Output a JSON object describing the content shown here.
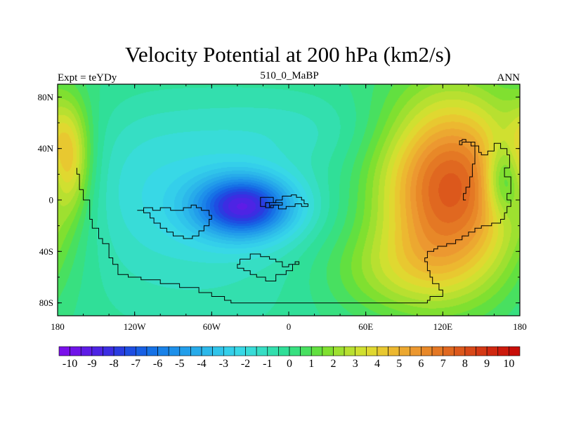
{
  "chart_data": {
    "type": "heatmap",
    "title": "Velocity Potential at 200 hPa (km2/s)",
    "subtitle_left": "Expt = teYDy",
    "subtitle_center": "510_0_MaBP",
    "subtitle_right": "ANN",
    "x_ticks": [
      {
        "value": -180,
        "label": "180"
      },
      {
        "value": -120,
        "label": "120W"
      },
      {
        "value": -60,
        "label": "60W"
      },
      {
        "value": 0,
        "label": "0"
      },
      {
        "value": 60,
        "label": "60E"
      },
      {
        "value": 120,
        "label": "120E"
      },
      {
        "value": 180,
        "label": "180"
      }
    ],
    "y_ticks": [
      {
        "value": 80,
        "label": "80N"
      },
      {
        "value": 40,
        "label": "40N"
      },
      {
        "value": 0,
        "label": "0"
      },
      {
        "value": -40,
        "label": "40S"
      },
      {
        "value": -80,
        "label": "80S"
      }
    ],
    "xlim": [
      -180,
      180
    ],
    "ylim": [
      -90,
      90
    ],
    "colorbar": {
      "min": -10.5,
      "max": 10.5,
      "step": 0.5,
      "labels": [
        "-10",
        "-9",
        "-8",
        "-7",
        "-6",
        "-5",
        "-4",
        "-3",
        "-2",
        "-1",
        "0",
        "1",
        "2",
        "3",
        "4",
        "5",
        "6",
        "7",
        "8",
        "9",
        "10"
      ],
      "colors": [
        "#7a10ea",
        "#6f14e8",
        "#5e1ce6",
        "#4d24e4",
        "#3c2de2",
        "#2a3ce0",
        "#1e4ee2",
        "#1860e4",
        "#1672e6",
        "#1a82e8",
        "#1e90ea",
        "#229eea",
        "#27abea",
        "#2cb8ea",
        "#30c4ea",
        "#34cfea",
        "#38d8e6",
        "#38dcd8",
        "#36dec4",
        "#33dfae",
        "#30df98",
        "#38e080",
        "#48e060",
        "#62e040",
        "#80e030",
        "#9ee030",
        "#b8e030",
        "#d0e030",
        "#e0d830",
        "#e8c830",
        "#ecb830",
        "#eca830",
        "#ec9830",
        "#e88828",
        "#e47824",
        "#e06820",
        "#dc581c",
        "#d84818",
        "#d43814",
        "#d02810",
        "#cc1a0c",
        "#c80e08"
      ]
    },
    "blobs": [
      {
        "lon": -35,
        "lat": -5,
        "amp": -7.6,
        "slon": 27,
        "slat": 17
      },
      {
        "lon": -70,
        "lat": -22,
        "amp": -1.4,
        "slon": 85,
        "slat": 55
      },
      {
        "lon": -120,
        "lat": 20,
        "amp": -1.0,
        "slon": 55,
        "slat": 38
      },
      {
        "lon": 0,
        "lat": 55,
        "amp": -0.9,
        "slon": 65,
        "slat": 22
      },
      {
        "lon": 128,
        "lat": 10,
        "amp": 8.0,
        "slon": 40,
        "slat": 50
      },
      {
        "lon": 168,
        "lat": 15,
        "amp": -3.2,
        "slon": 11,
        "slat": 20
      },
      {
        "lon": -172,
        "lat": 35,
        "amp": 3.5,
        "slon": 12,
        "slat": 30
      },
      {
        "lon": 85,
        "lat": -55,
        "amp": 2.0,
        "slon": 45,
        "slat": 25
      }
    ],
    "coastlines": [
      [
        [
          -165,
          25
        ],
        [
          -165,
          20
        ],
        [
          -163,
          20
        ],
        [
          -163,
          8
        ],
        [
          -160,
          8
        ],
        [
          -160,
          0
        ],
        [
          -155,
          0
        ],
        [
          -155,
          -15
        ],
        [
          -153,
          -15
        ],
        [
          -153,
          -22
        ],
        [
          -148,
          -22
        ],
        [
          -148,
          -30
        ],
        [
          -145,
          -30
        ],
        [
          -145,
          -34
        ],
        [
          -140,
          -34
        ],
        [
          -140,
          -45
        ],
        [
          -137,
          -45
        ],
        [
          -137,
          -50
        ],
        [
          -133,
          -50
        ],
        [
          -133,
          -58
        ],
        [
          -125,
          -58
        ],
        [
          -125,
          -60
        ],
        [
          -115,
          -60
        ],
        [
          -115,
          -62
        ],
        [
          -100,
          -62
        ],
        [
          -100,
          -65
        ],
        [
          -85,
          -65
        ],
        [
          -85,
          -68
        ],
        [
          -70,
          -68
        ],
        [
          -70,
          -72
        ],
        [
          -60,
          -72
        ],
        [
          -60,
          -75
        ],
        [
          -50,
          -75
        ],
        [
          -50,
          -78
        ],
        [
          -45,
          -78
        ],
        [
          -45,
          -80
        ],
        [
          -20,
          -80
        ],
        [
          0,
          -80
        ],
        [
          40,
          -80
        ],
        [
          65,
          -80
        ],
        [
          90,
          -80
        ],
        [
          108,
          -80
        ],
        [
          108,
          -78
        ],
        [
          110,
          -78
        ],
        [
          110,
          -75
        ],
        [
          120,
          -75
        ],
        [
          120,
          -70
        ],
        [
          117,
          -70
        ],
        [
          117,
          -65
        ],
        [
          112,
          -65
        ],
        [
          112,
          -60
        ],
        [
          110,
          -60
        ],
        [
          110,
          -55
        ],
        [
          108,
          -55
        ],
        [
          108,
          -48
        ],
        [
          106,
          -48
        ],
        [
          106,
          -45
        ],
        [
          108,
          -45
        ],
        [
          108,
          -40
        ],
        [
          113,
          -40
        ],
        [
          113,
          -38
        ],
        [
          116,
          -38
        ],
        [
          116,
          -36
        ],
        [
          123,
          -36
        ],
        [
          123,
          -34
        ],
        [
          130,
          -34
        ],
        [
          130,
          -31
        ],
        [
          135,
          -31
        ],
        [
          135,
          -28
        ],
        [
          140,
          -28
        ],
        [
          140,
          -25
        ],
        [
          145,
          -25
        ],
        [
          145,
          -22
        ],
        [
          150,
          -22
        ],
        [
          150,
          -20
        ],
        [
          158,
          -20
        ],
        [
          158,
          -18
        ],
        [
          165,
          -18
        ],
        [
          165,
          -15
        ],
        [
          168,
          -15
        ],
        [
          168,
          -10
        ],
        [
          170,
          -10
        ],
        [
          170,
          -5
        ],
        [
          173,
          -5
        ],
        [
          173,
          0
        ],
        [
          170,
          0
        ],
        [
          170,
          5
        ],
        [
          173,
          5
        ],
        [
          173,
          18
        ],
        [
          168,
          18
        ],
        [
          168,
          25
        ],
        [
          172,
          25
        ],
        [
          172,
          35
        ],
        [
          170,
          35
        ],
        [
          170,
          40
        ],
        [
          165,
          40
        ],
        [
          165,
          44
        ],
        [
          160,
          44
        ],
        [
          160,
          38
        ],
        [
          155,
          38
        ],
        [
          155,
          35
        ],
        [
          150,
          35
        ],
        [
          150,
          37
        ],
        [
          148,
          37
        ],
        [
          148,
          42
        ],
        [
          142,
          42
        ],
        [
          142,
          45
        ],
        [
          135,
          45
        ],
        [
          135,
          43
        ],
        [
          133,
          43
        ],
        [
          133,
          46
        ],
        [
          135,
          46
        ],
        [
          135,
          47
        ],
        [
          138,
          47
        ],
        [
          138,
          45
        ],
        [
          140,
          45
        ]
      ],
      [
        [
          140,
          45
        ],
        [
          145,
          45
        ],
        [
          145,
          28
        ],
        [
          143,
          28
        ],
        [
          143,
          18
        ],
        [
          141,
          18
        ],
        [
          141,
          10
        ],
        [
          138,
          10
        ],
        [
          138,
          5
        ],
        [
          136,
          5
        ],
        [
          136,
          0
        ],
        [
          138,
          0
        ]
      ],
      [
        [
          -118,
          -8
        ],
        [
          -113,
          -8
        ],
        [
          -113,
          -10
        ],
        [
          -108,
          -10
        ],
        [
          -108,
          -14
        ],
        [
          -105,
          -14
        ],
        [
          -105,
          -18
        ],
        [
          -100,
          -18
        ],
        [
          -100,
          -22
        ],
        [
          -95,
          -22
        ],
        [
          -95,
          -25
        ],
        [
          -90,
          -25
        ],
        [
          -90,
          -28
        ],
        [
          -82,
          -28
        ],
        [
          -82,
          -30
        ],
        [
          -75,
          -30
        ],
        [
          -75,
          -28
        ],
        [
          -70,
          -28
        ],
        [
          -70,
          -24
        ],
        [
          -66,
          -24
        ],
        [
          -66,
          -20
        ],
        [
          -62,
          -20
        ],
        [
          -62,
          -15
        ],
        [
          -60,
          -15
        ],
        [
          -60,
          -12
        ],
        [
          -62,
          -12
        ],
        [
          -62,
          -8
        ],
        [
          -68,
          -8
        ],
        [
          -68,
          -6
        ],
        [
          -72,
          -6
        ],
        [
          -72,
          -4
        ],
        [
          -76,
          -4
        ],
        [
          -76,
          -6
        ],
        [
          -82,
          -6
        ],
        [
          -82,
          -8
        ],
        [
          -92,
          -8
        ],
        [
          -92,
          -6
        ],
        [
          -100,
          -6
        ],
        [
          -100,
          -8
        ],
        [
          -106,
          -8
        ],
        [
          -106,
          -6
        ],
        [
          -113,
          -6
        ],
        [
          -113,
          -8
        ],
        [
          -118,
          -8
        ]
      ],
      [
        [
          -12,
          -2
        ],
        [
          -5,
          -2
        ],
        [
          -5,
          -4
        ],
        [
          -12,
          -4
        ],
        [
          -12,
          -6
        ],
        [
          -15,
          -6
        ],
        [
          -15,
          -2
        ],
        [
          -18,
          -2
        ],
        [
          -18,
          -5
        ],
        [
          -22,
          -5
        ],
        [
          -22,
          2
        ],
        [
          -15,
          2
        ],
        [
          -12,
          2
        ],
        [
          -12,
          -2
        ]
      ],
      [
        [
          -18,
          -2
        ],
        [
          -10,
          -2
        ],
        [
          -10,
          0
        ],
        [
          -5,
          0
        ],
        [
          -5,
          3
        ],
        [
          2,
          3
        ],
        [
          2,
          4
        ],
        [
          6,
          4
        ],
        [
          6,
          2
        ],
        [
          10,
          2
        ],
        [
          10,
          0
        ],
        [
          12,
          0
        ],
        [
          12,
          -3
        ],
        [
          15,
          -3
        ],
        [
          15,
          -5
        ],
        [
          10,
          -5
        ],
        [
          10,
          -3
        ],
        [
          5,
          -3
        ],
        [
          5,
          -5
        ],
        [
          -2,
          -5
        ],
        [
          -2,
          -7
        ],
        [
          -8,
          -7
        ],
        [
          -8,
          -4
        ],
        [
          -14,
          -4
        ],
        [
          -14,
          -6
        ],
        [
          -18,
          -6
        ],
        [
          -18,
          -2
        ]
      ],
      [
        [
          -38,
          -46
        ],
        [
          -30,
          -46
        ],
        [
          -30,
          -42
        ],
        [
          -22,
          -42
        ],
        [
          -22,
          -44
        ],
        [
          -15,
          -44
        ],
        [
          -15,
          -46
        ],
        [
          -10,
          -46
        ],
        [
          -10,
          -48
        ],
        [
          -5,
          -48
        ],
        [
          -5,
          -52
        ],
        [
          0,
          -52
        ],
        [
          0,
          -50
        ],
        [
          5,
          -50
        ],
        [
          5,
          -48
        ],
        [
          8,
          -48
        ],
        [
          8,
          -50
        ],
        [
          3,
          -50
        ],
        [
          3,
          -55
        ],
        [
          -2,
          -55
        ],
        [
          -2,
          -58
        ],
        [
          -10,
          -58
        ],
        [
          -10,
          -63
        ],
        [
          -18,
          -63
        ],
        [
          -18,
          -60
        ],
        [
          -25,
          -60
        ],
        [
          -25,
          -58
        ],
        [
          -30,
          -58
        ],
        [
          -30,
          -55
        ],
        [
          -35,
          -55
        ],
        [
          -35,
          -53
        ],
        [
          -40,
          -53
        ],
        [
          -40,
          -50
        ],
        [
          -38,
          -50
        ],
        [
          -38,
          -46
        ]
      ]
    ]
  }
}
